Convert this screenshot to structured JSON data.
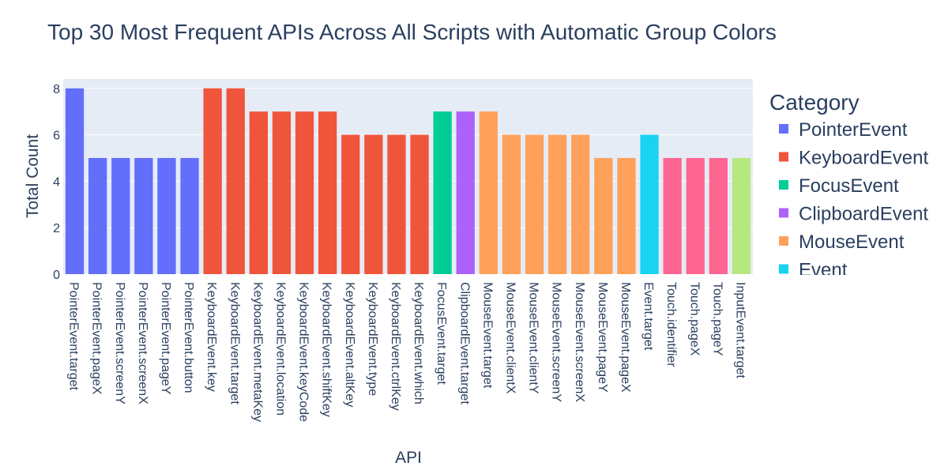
{
  "chart_data": {
    "type": "bar",
    "title": "Top 30 Most Frequent APIs Across All Scripts with Automatic Group Colors",
    "xlabel": "API",
    "ylabel": "Total Count",
    "ylim": [
      0,
      8.4
    ],
    "yticks": [
      0,
      2,
      4,
      6,
      8
    ],
    "grid": true,
    "plot_background": "#e5ecf6",
    "legend": {
      "title": "Category",
      "placement": "right",
      "entries": [
        {
          "name": "PointerEvent",
          "color": "#636efa"
        },
        {
          "name": "KeyboardEvent",
          "color": "#ef553b"
        },
        {
          "name": "FocusEvent",
          "color": "#00cc96"
        },
        {
          "name": "ClipboardEvent",
          "color": "#ab63fa"
        },
        {
          "name": "MouseEvent",
          "color": "#ffa15a"
        },
        {
          "name": "Event",
          "color": "#19d3f3"
        }
      ]
    },
    "categories": [
      "PointerEvent.target",
      "PointerEvent.pageX",
      "PointerEvent.screenY",
      "PointerEvent.screenX",
      "PointerEvent.pageY",
      "PointerEvent.button",
      "KeyboardEvent.key",
      "KeyboardEvent.target",
      "KeyboardEvent.metaKey",
      "KeyboardEvent.location",
      "KeyboardEvent.keyCode",
      "KeyboardEvent.shiftKey",
      "KeyboardEvent.altKey",
      "KeyboardEvent.type",
      "KeyboardEvent.ctrlKey",
      "KeyboardEvent.which",
      "FocusEvent.target",
      "ClipboardEvent.target",
      "MouseEvent.target",
      "MouseEvent.clientX",
      "MouseEvent.clientY",
      "MouseEvent.screenY",
      "MouseEvent.screenX",
      "MouseEvent.pageY",
      "MouseEvent.pageX",
      "Event.target",
      "Touch.identifier",
      "Touch.pageX",
      "Touch.pageY",
      "InputEvent.target"
    ],
    "values": [
      8,
      5,
      5,
      5,
      5,
      5,
      8,
      8,
      7,
      7,
      7,
      7,
      6,
      6,
      6,
      6,
      7,
      7,
      7,
      6,
      6,
      6,
      6,
      5,
      5,
      6,
      5,
      5,
      5,
      5
    ],
    "bar_colors": [
      "#636efa",
      "#636efa",
      "#636efa",
      "#636efa",
      "#636efa",
      "#636efa",
      "#ef553b",
      "#ef553b",
      "#ef553b",
      "#ef553b",
      "#ef553b",
      "#ef553b",
      "#ef553b",
      "#ef553b",
      "#ef553b",
      "#ef553b",
      "#00cc96",
      "#ab63fa",
      "#ffa15a",
      "#ffa15a",
      "#ffa15a",
      "#ffa15a",
      "#ffa15a",
      "#ffa15a",
      "#ffa15a",
      "#19d3f3",
      "#ff6692",
      "#ff6692",
      "#ff6692",
      "#b6e880"
    ]
  }
}
